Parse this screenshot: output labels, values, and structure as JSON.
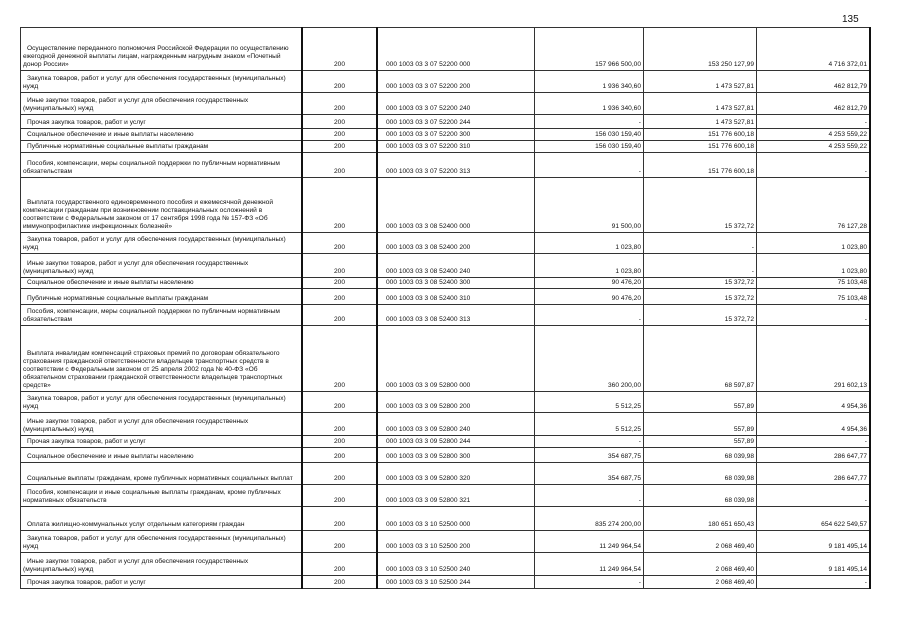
{
  "page_number": "135",
  "rows": [
    {
      "desc": "Осуществление переданного полномочия Российской Федерации по осуществлению ежегодной денежной выплаты лицам, награжденным нагрудным знаком «Почетный донор России»",
      "line": "200",
      "code": "000 1003 03 3 07 52200 000",
      "approved": "157 966 500,00",
      "executed": "153 250 127,99",
      "remainder": "4 716 372,01"
    },
    {
      "desc": "Закупка товаров, работ и услуг для обеспечения государственных (муниципальных) нужд",
      "line": "200",
      "code": "000 1003 03 3 07 52200 200",
      "approved": "1 936 340,60",
      "executed": "1 473 527,81",
      "remainder": "462 812,79"
    },
    {
      "desc": "Иные закупки товаров, работ и услуг для обеспечения государственных (муниципальных) нужд",
      "line": "200",
      "code": "000 1003 03 3 07 52200 240",
      "approved": "1 936 340,60",
      "executed": "1 473 527,81",
      "remainder": "462 812,79"
    },
    {
      "desc": "Прочая закупка товаров, работ и услуг",
      "line": "200",
      "code": "000 1003 03 3 07 52200 244",
      "approved": "-",
      "executed": "1 473 527,81",
      "remainder": "-"
    },
    {
      "desc": "Социальное обеспечение и иные выплаты населению",
      "line": "200",
      "code": "000 1003 03 3 07 52200 300",
      "approved": "156 030 159,40",
      "executed": "151 776 600,18",
      "remainder": "4 253 559,22"
    },
    {
      "desc": "Публичные нормативные социальные выплаты гражданам",
      "line": "200",
      "code": "000 1003 03 3 07 52200 310",
      "approved": "156 030 159,40",
      "executed": "151 776 600,18",
      "remainder": "4 253 559,22"
    },
    {
      "desc": "Пособия, компенсации, меры социальной поддержки по публичным нормативным обязательствам",
      "line": "200",
      "code": "000 1003 03 3 07 52200 313",
      "approved": "-",
      "executed": "151 776 600,18",
      "remainder": "-"
    },
    {
      "desc": "Выплата государственного единовременного пособия и ежемесячной денежной компенсации гражданам при возникновении поствакцинальных осложнений в соответствии с Федеральным законом от 17 сентября 1998 года № 157-ФЗ «Об иммунопрофилактике инфекционных болезней»",
      "line": "200",
      "code": "000 1003 03 3 08 52400 000",
      "approved": "91 500,00",
      "executed": "15 372,72",
      "remainder": "76 127,28"
    },
    {
      "desc": "Закупка товаров, работ и услуг для обеспечения государственных (муниципальных) нужд",
      "line": "200",
      "code": "000 1003 03 3 08 52400 200",
      "approved": "1 023,80",
      "executed": "-",
      "remainder": "1 023,80"
    },
    {
      "desc": "Иные закупки товаров, работ и услуг для обеспечения государственных (муниципальных) нужд",
      "line": "200",
      "code": "000 1003 03 3 08 52400 240",
      "approved": "1 023,80",
      "executed": "-",
      "remainder": "1 023,80"
    },
    {
      "desc": "Социальное обеспечение и иные выплаты населению",
      "line": "200",
      "code": "000 1003 03 3 08 52400 300",
      "approved": "90 476,20",
      "executed": "15 372,72",
      "remainder": "75 103,48"
    },
    {
      "desc": "Публичные нормативные социальные выплаты гражданам",
      "line": "200",
      "code": "000 1003 03 3 08 52400 310",
      "approved": "90 476,20",
      "executed": "15 372,72",
      "remainder": "75 103,48"
    },
    {
      "desc": "Пособия, компенсации, меры социальной поддержки по публичным нормативным обязательствам",
      "line": "200",
      "code": "000 1003 03 3 08 52400 313",
      "approved": "-",
      "executed": "15 372,72",
      "remainder": "-"
    },
    {
      "desc": "Выплата инвалидам компенсаций страховых премий по договорам обязательного страхования гражданской ответственности владельцев транспортных средств в соответствии с Федеральным законом от 25 апреля 2002 года № 40-ФЗ «Об обязательном страховании гражданской ответственности владельцев транспортных средств»",
      "line": "200",
      "code": "000 1003 03 3 09 52800 000",
      "approved": "360 200,00",
      "executed": "68 597,87",
      "remainder": "291 602,13"
    },
    {
      "desc": "Закупка товаров, работ и услуг для обеспечения государственных (муниципальных) нужд",
      "line": "200",
      "code": "000 1003 03 3 09 52800 200",
      "approved": "5 512,25",
      "executed": "557,89",
      "remainder": "4 954,36"
    },
    {
      "desc": "Иные закупки товаров, работ и услуг для обеспечения государственных (муниципальных) нужд",
      "line": "200",
      "code": "000 1003 03 3 09 52800 240",
      "approved": "5 512,25",
      "executed": "557,89",
      "remainder": "4 954,36"
    },
    {
      "desc": "Прочая закупка товаров, работ и услуг",
      "line": "200",
      "code": "000 1003 03 3 09 52800 244",
      "approved": "-",
      "executed": "557,89",
      "remainder": "-"
    },
    {
      "desc": "Социальное обеспечение и иные выплаты населению",
      "line": "200",
      "code": "000 1003 03 3 09 52800 300",
      "approved": "354 687,75",
      "executed": "68 039,98",
      "remainder": "286 647,77"
    },
    {
      "desc": "Социальные выплаты гражданам, кроме публичных нормативных социальных выплат",
      "line": "200",
      "code": "000 1003 03 3 09 52800 320",
      "approved": "354 687,75",
      "executed": "68 039,98",
      "remainder": "286 647,77"
    },
    {
      "desc": "Пособия, компенсации и иные социальные выплаты гражданам, кроме публичных нормативных обязательств",
      "line": "200",
      "code": "000 1003 03 3 09 52800 321",
      "approved": "-",
      "executed": "68 039,98",
      "remainder": "-"
    },
    {
      "desc": "Оплата жилищно-коммунальных услуг отдельным категориям граждан",
      "line": "200",
      "code": "000 1003 03 3 10 52500 000",
      "approved": "835 274 200,00",
      "executed": "180 651 650,43",
      "remainder": "654 622 549,57"
    },
    {
      "desc": "Закупка товаров, работ и услуг для обеспечения государственных (муниципальных) нужд",
      "line": "200",
      "code": "000 1003 03 3 10 52500 200",
      "approved": "11 249 964,54",
      "executed": "2 068 469,40",
      "remainder": "9 181 495,14"
    },
    {
      "desc": "Иные закупки товаров, работ и услуг для обеспечения государственных (муниципальных) нужд",
      "line": "200",
      "code": "000 1003 03 3 10 52500 240",
      "approved": "11 249 964,54",
      "executed": "2 068 469,40",
      "remainder": "9 181 495,14"
    },
    {
      "desc": "Прочая закупка товаров, работ и услуг",
      "line": "200",
      "code": "000 1003 03 3 10 52500 244",
      "approved": "-",
      "executed": "2 068 469,40",
      "remainder": "-"
    }
  ]
}
